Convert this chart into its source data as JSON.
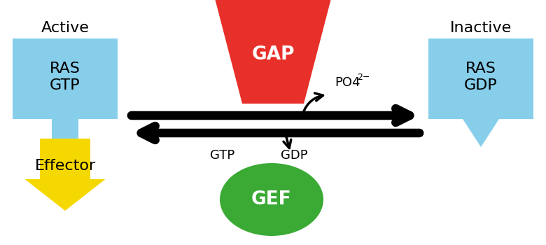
{
  "bg_color": "#ffffff",
  "sky_blue": "#87CEEB",
  "red": "#E8302A",
  "green": "#3AAA35",
  "yellow": "#F5D800",
  "black": "#000000",
  "white": "#ffffff",
  "active_label": "Active",
  "inactive_label": "Inactive",
  "effector_label": "Effector",
  "gap_label": "GAP",
  "gef_label": "GEF",
  "gtp_label": "GTP",
  "gdp_label": "GDP",
  "figsize": [
    7.8,
    3.5
  ],
  "dpi": 100
}
